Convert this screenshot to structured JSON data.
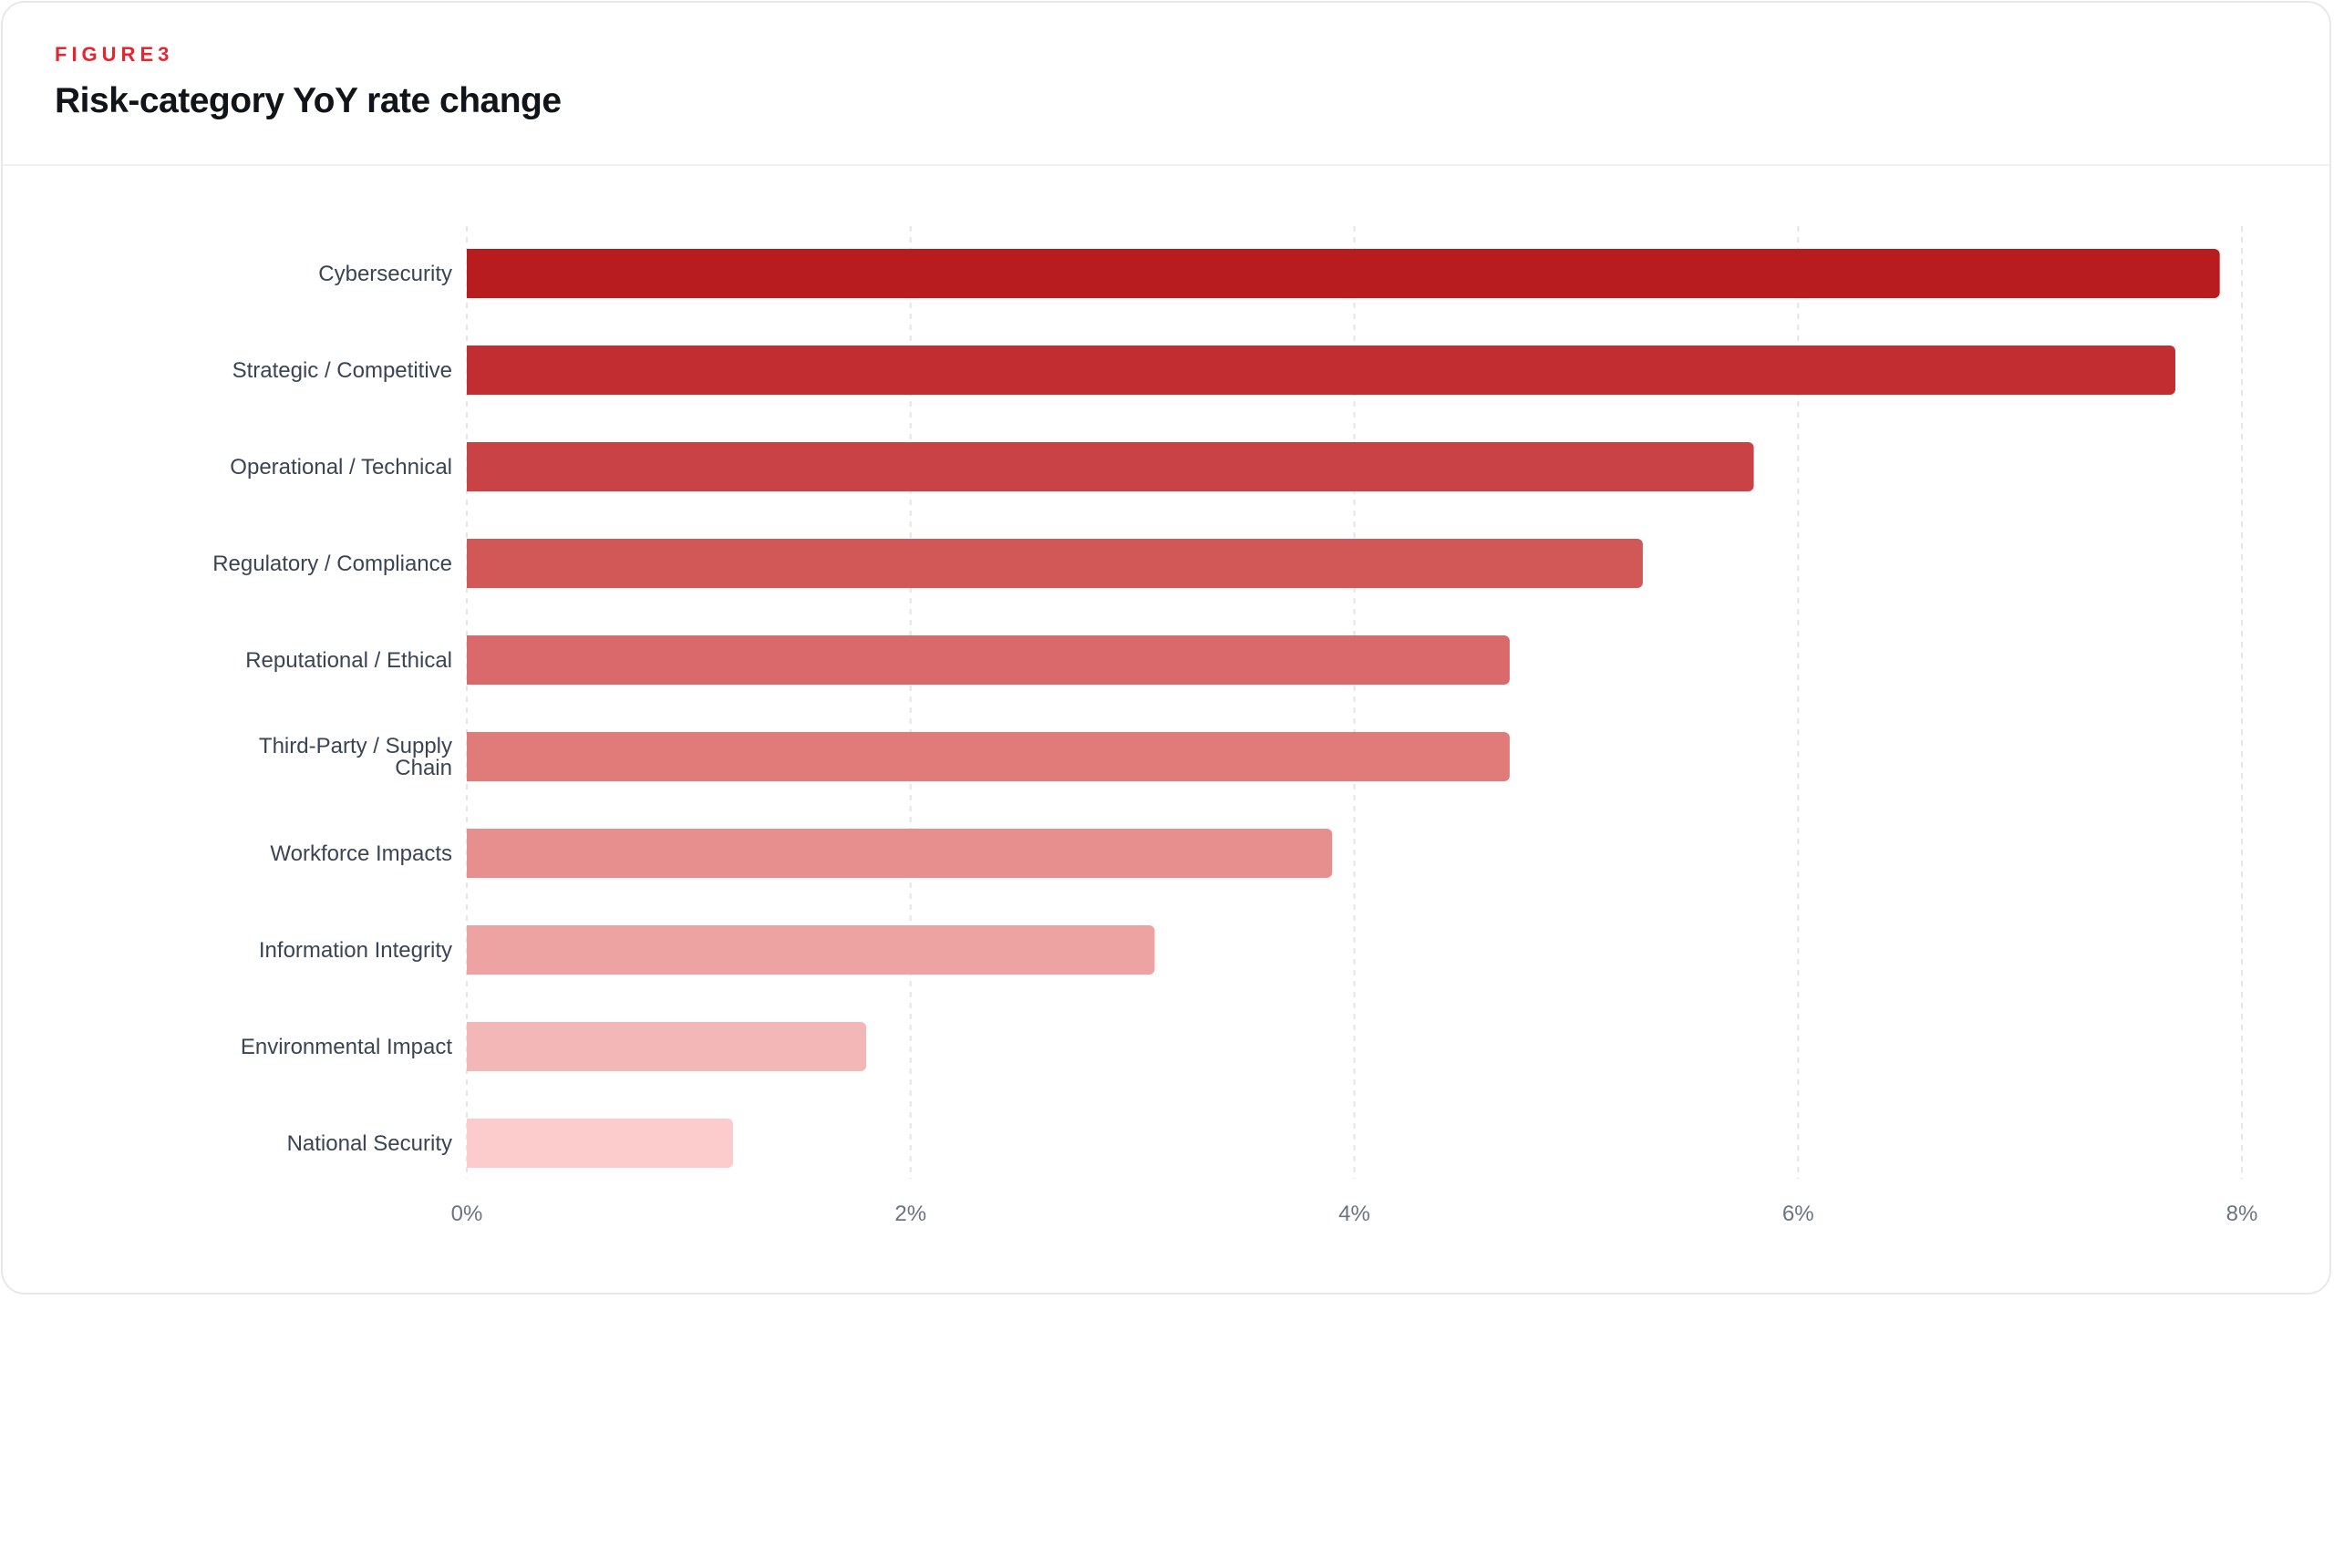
{
  "figure": {
    "eyebrow": "FIGURE3",
    "title": "Risk-category YoY rate change"
  },
  "chart_data": {
    "type": "bar",
    "orientation": "horizontal",
    "categories": [
      [
        "Cybersecurity"
      ],
      [
        "Strategic / Competitive"
      ],
      [
        "Operational / Technical"
      ],
      [
        "Regulatory / Compliance"
      ],
      [
        "Reputational / Ethical"
      ],
      [
        "Third-Party / Supply",
        "Chain"
      ],
      [
        "Workforce Impacts"
      ],
      [
        "Information Integrity"
      ],
      [
        "Environmental Impact"
      ],
      [
        "National Security"
      ]
    ],
    "values": [
      7.9,
      7.7,
      5.8,
      5.3,
      4.7,
      4.7,
      3.9,
      3.1,
      1.8,
      1.2
    ],
    "unit": "%",
    "xlim": [
      0,
      8
    ],
    "xticks": [
      0,
      2,
      4,
      6,
      8
    ],
    "xtick_labels": [
      "0%",
      "2%",
      "4%",
      "6%",
      "8%"
    ],
    "grid": "vertical dashed",
    "legend": "none",
    "colors": [
      "#b91c1f",
      "#c22d32",
      "#c94246",
      "#d25757",
      "#d9696a",
      "#e07b7a",
      "#e68f8e",
      "#eea3a3",
      "#f4b7b7",
      "#fccbcb"
    ]
  }
}
